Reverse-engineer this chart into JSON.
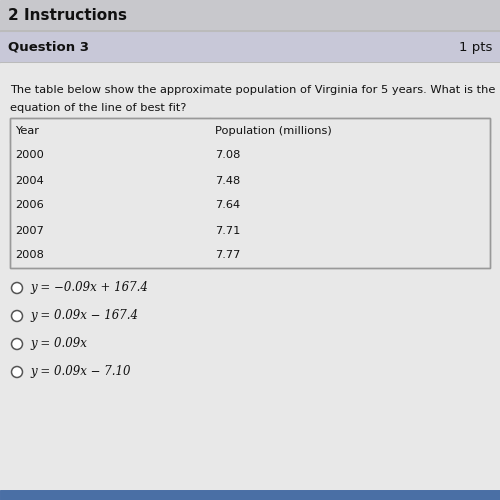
{
  "header_title": "2 Instructions",
  "question_label": "Question 3",
  "points_label": "1 pts",
  "question_text_line1": "The table below show the approximate population of Virginia for 5 years. What is the",
  "question_text_line2": "equation of the line of best fit?",
  "table_headers": [
    "Year",
    "Population (millions)"
  ],
  "table_rows": [
    [
      "2000",
      "7.08"
    ],
    [
      "2004",
      "7.48"
    ],
    [
      "2006",
      "7.64"
    ],
    [
      "2007",
      "7.71"
    ],
    [
      "2008",
      "7.77"
    ]
  ],
  "choices": [
    "y = −0.09x + 167.4",
    "y = 0.09x − 167.4",
    "y = 0.09x",
    "y = 0.09x − 7.10"
  ],
  "bg_color": "#e8e8e8",
  "header_bg": "#c8c8cc",
  "question_bg": "#c8c8d8",
  "table_bg_header": "#d8d8d8",
  "table_bg_row": "#e0e0dc",
  "table_border_color": "#999999",
  "white": "#ffffff",
  "text_dark": "#111111",
  "bottom_bar_color": "#4a6fa5"
}
